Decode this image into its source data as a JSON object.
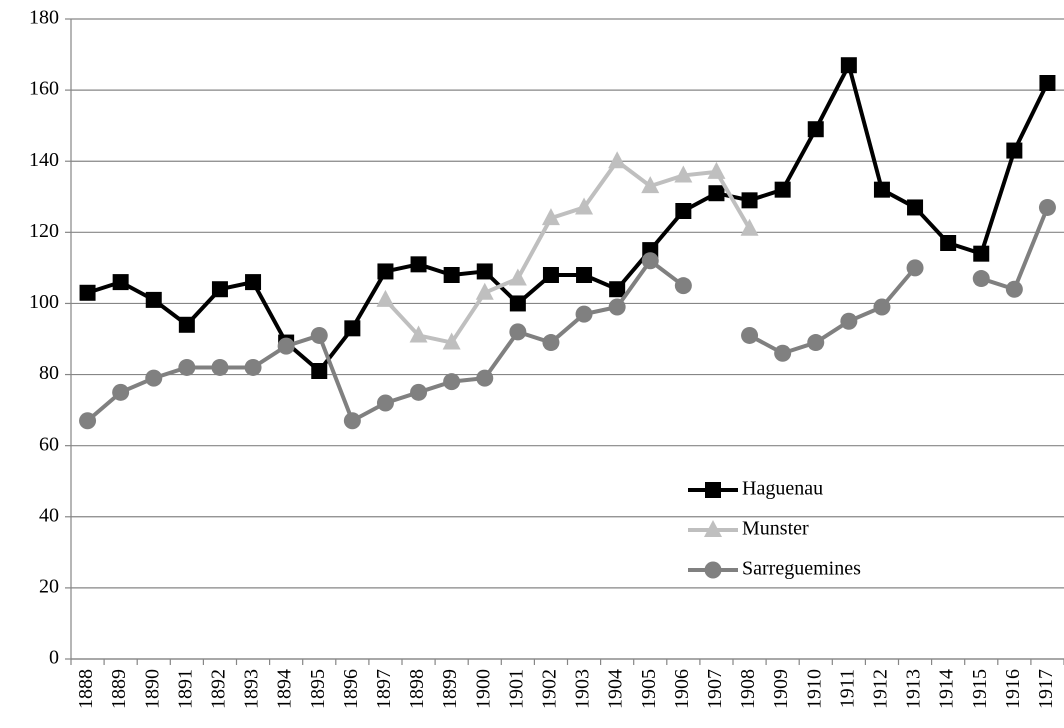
{
  "chart_data": {
    "type": "line",
    "categories": [
      "1888",
      "1889",
      "1890",
      "1891",
      "1892",
      "1893",
      "1894",
      "1895",
      "1896",
      "1897",
      "1898",
      "1899",
      "1900",
      "1901",
      "1902",
      "1903",
      "1904",
      "1905",
      "1906",
      "1907",
      "1908",
      "1909",
      "1910",
      "1911",
      "1912",
      "1913",
      "1914",
      "1915",
      "1916",
      "1917"
    ],
    "series": [
      {
        "name": "Haguenau",
        "color": "#000000",
        "marker": "square",
        "values": [
          103,
          106,
          101,
          94,
          104,
          106,
          89,
          81,
          93,
          109,
          111,
          108,
          109,
          100,
          108,
          108,
          104,
          115,
          126,
          131,
          129,
          132,
          149,
          167,
          132,
          127,
          117,
          114,
          143,
          162
        ]
      },
      {
        "name": "Munster",
        "color": "#bfbfbf",
        "marker": "triangle",
        "values": [
          null,
          null,
          null,
          null,
          null,
          null,
          null,
          null,
          null,
          101,
          91,
          89,
          103,
          107,
          124,
          127,
          140,
          133,
          136,
          137,
          121,
          null,
          null,
          null,
          null,
          null,
          null,
          null,
          null,
          null
        ]
      },
      {
        "name": "Sarreguemines",
        "color": "#808080",
        "marker": "circle",
        "values": [
          67,
          75,
          79,
          82,
          82,
          82,
          88,
          91,
          67,
          72,
          75,
          78,
          79,
          92,
          89,
          97,
          99,
          112,
          105,
          null,
          91,
          86,
          89,
          95,
          99,
          110,
          null,
          107,
          104,
          127
        ]
      }
    ],
    "ylim": [
      0,
      180
    ],
    "yticks": [
      0,
      20,
      40,
      60,
      80,
      100,
      120,
      140,
      160,
      180
    ],
    "grid": true,
    "legend": "lower right"
  }
}
